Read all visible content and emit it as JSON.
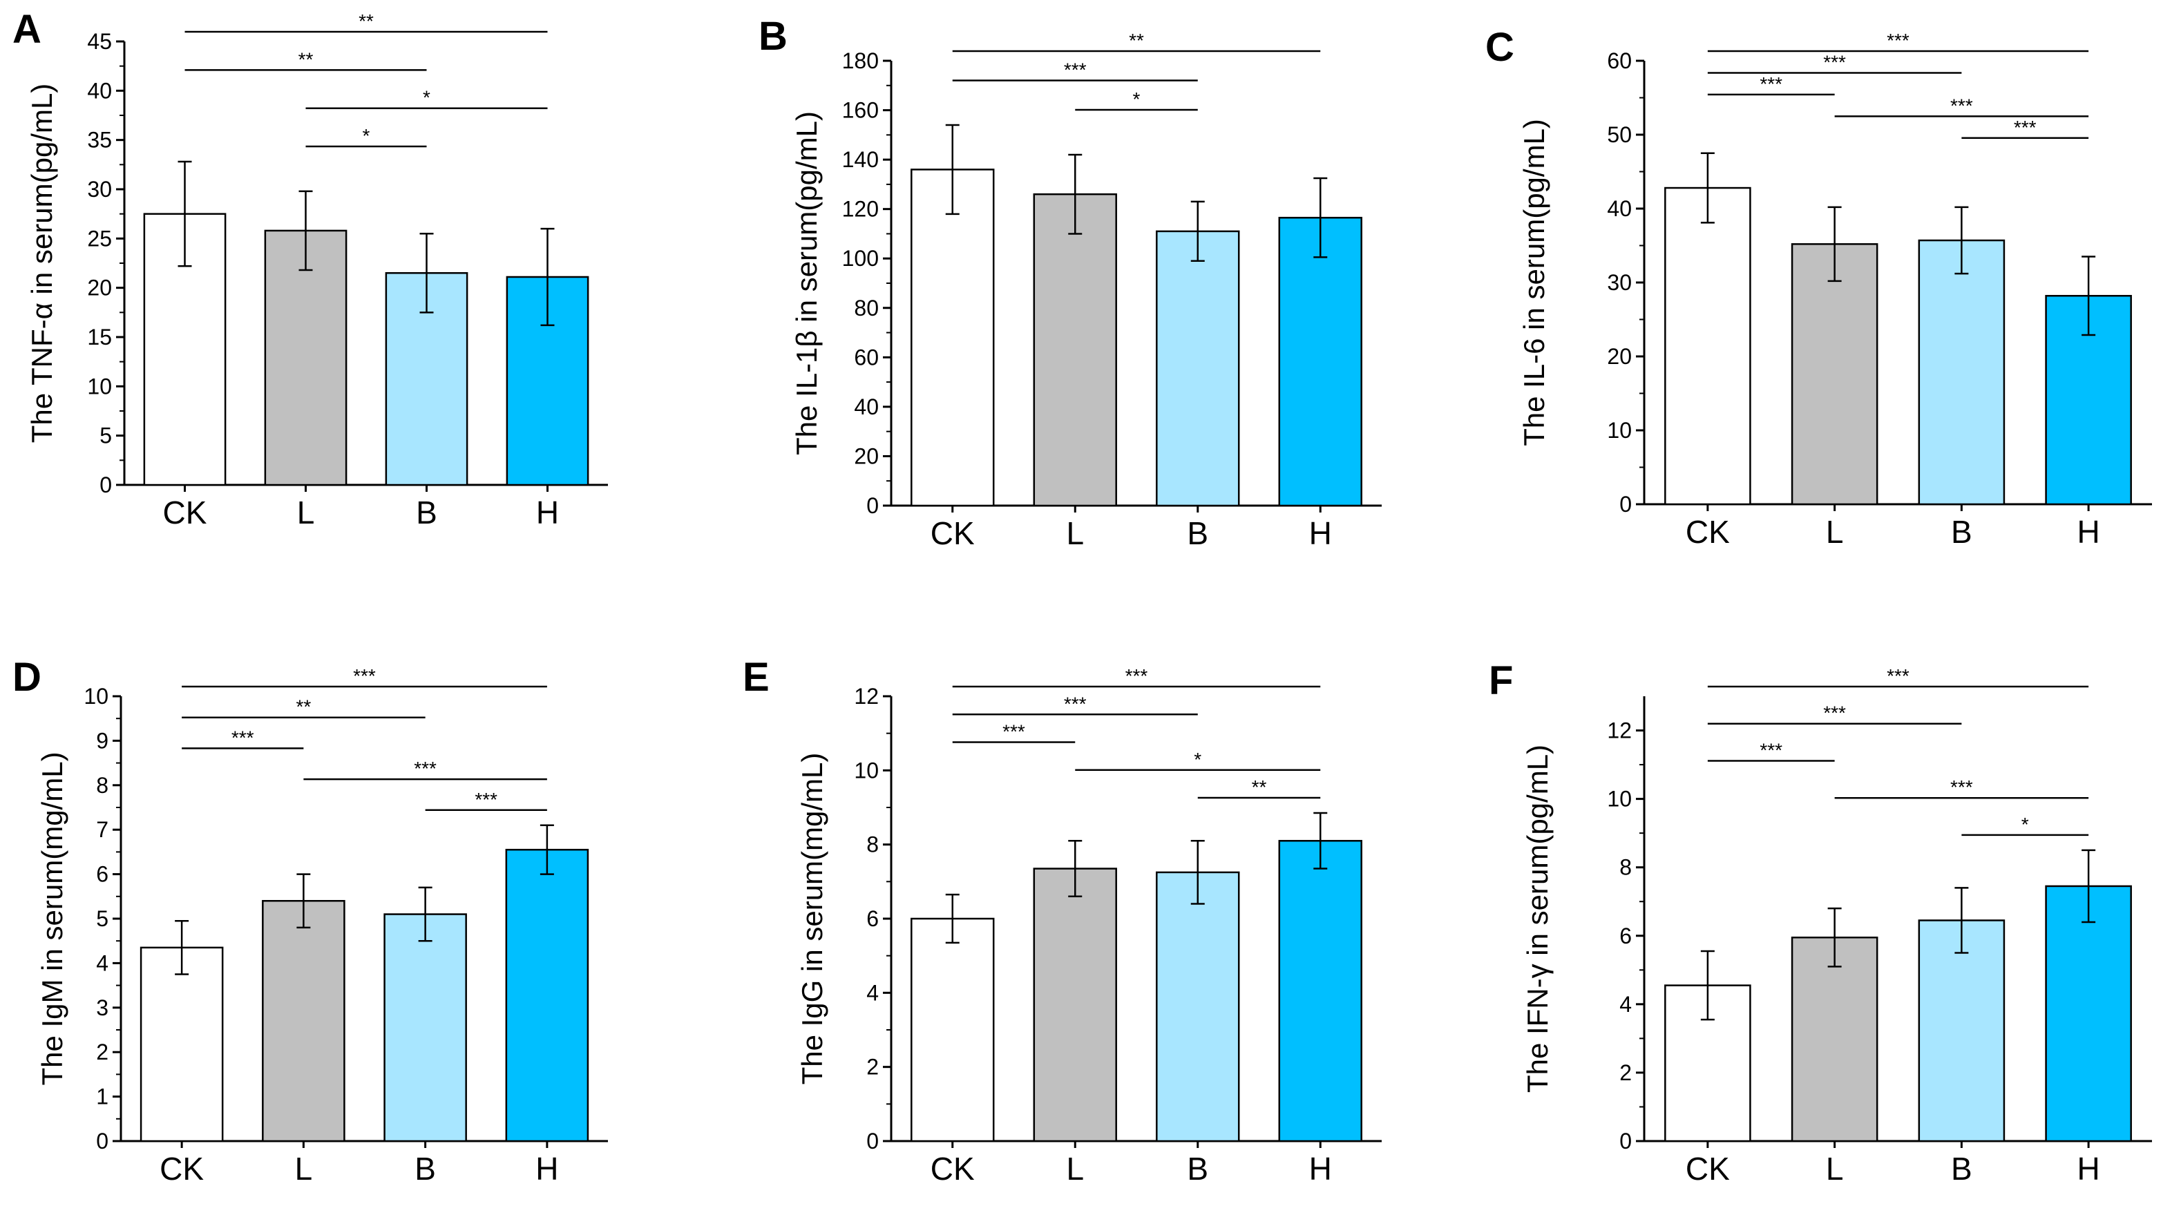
{
  "colors": {
    "CK": "#ffffff",
    "L": "#c0c0c0",
    "B": "#a8e6ff",
    "H": "#00bfff",
    "outline": "#000000"
  },
  "chart_data": [
    {
      "id": "A",
      "type": "bar",
      "letter": "A",
      "ylabel": "The TNF-α in serum(pg/mL)",
      "ylim": [
        0,
        45
      ],
      "yticks": [
        0,
        5,
        10,
        15,
        20,
        25,
        30,
        35,
        40,
        45
      ],
      "categories": [
        "CK",
        "L",
        "B",
        "H"
      ],
      "values": [
        27.5,
        25.8,
        21.5,
        21.1
      ],
      "errors": [
        5.3,
        4.0,
        4.0,
        4.9
      ],
      "sig": [
        {
          "from": 0,
          "to": 3,
          "label": "**"
        },
        {
          "from": 0,
          "to": 2,
          "label": "**"
        },
        {
          "from": 1,
          "to": 3,
          "label": "*"
        },
        {
          "from": 1,
          "to": 2,
          "label": "*"
        }
      ]
    },
    {
      "id": "B",
      "type": "bar",
      "letter": "B",
      "ylabel": "The IL-1β in serum(pg/mL)",
      "ylim": [
        0,
        180
      ],
      "yticks": [
        0,
        20,
        40,
        60,
        80,
        100,
        120,
        140,
        160,
        180
      ],
      "categories": [
        "CK",
        "L",
        "B",
        "H"
      ],
      "values": [
        136,
        126,
        111,
        116.5
      ],
      "errors": [
        18,
        16,
        12,
        16
      ],
      "sig": [
        {
          "from": 0,
          "to": 3,
          "label": "**"
        },
        {
          "from": 0,
          "to": 2,
          "label": "***"
        },
        {
          "from": 1,
          "to": 2,
          "label": "*"
        }
      ]
    },
    {
      "id": "C",
      "type": "bar",
      "letter": "C",
      "ylabel": "The IL-6 in serum(pg/mL)",
      "ylim": [
        0,
        60
      ],
      "yticks": [
        0,
        10,
        20,
        30,
        40,
        50,
        60
      ],
      "categories": [
        "CK",
        "L",
        "B",
        "H"
      ],
      "values": [
        42.8,
        35.2,
        35.7,
        28.2
      ],
      "errors": [
        4.7,
        5.0,
        4.5,
        5.3
      ],
      "sig": [
        {
          "from": 0,
          "to": 3,
          "label": "***"
        },
        {
          "from": 0,
          "to": 2,
          "label": "***"
        },
        {
          "from": 0,
          "to": 1,
          "label": "***"
        },
        {
          "from": 1,
          "to": 3,
          "label": "***"
        },
        {
          "from": 2,
          "to": 3,
          "label": "***"
        }
      ]
    },
    {
      "id": "D",
      "type": "bar",
      "letter": "D",
      "ylabel": "The IgM in serum(mg/mL)",
      "ylim": [
        0,
        10
      ],
      "yticks": [
        0,
        1,
        2,
        3,
        4,
        5,
        6,
        7,
        8,
        9,
        10
      ],
      "categories": [
        "CK",
        "L",
        "B",
        "H"
      ],
      "values": [
        4.35,
        5.4,
        5.1,
        6.55
      ],
      "errors": [
        0.6,
        0.6,
        0.6,
        0.55
      ],
      "sig": [
        {
          "from": 0,
          "to": 3,
          "label": "***"
        },
        {
          "from": 0,
          "to": 2,
          "label": "**"
        },
        {
          "from": 0,
          "to": 1,
          "label": "***"
        },
        {
          "from": 1,
          "to": 3,
          "label": "***"
        },
        {
          "from": 2,
          "to": 3,
          "label": "***"
        }
      ]
    },
    {
      "id": "E",
      "type": "bar",
      "letter": "E",
      "ylabel": "The IgG in serum(mg/mL)",
      "ylim": [
        0,
        12
      ],
      "yticks": [
        0,
        2,
        4,
        6,
        8,
        10,
        12
      ],
      "categories": [
        "CK",
        "L",
        "B",
        "H"
      ],
      "values": [
        6.0,
        7.35,
        7.25,
        8.1
      ],
      "errors": [
        0.65,
        0.75,
        0.85,
        0.75
      ],
      "sig": [
        {
          "from": 0,
          "to": 3,
          "label": "***"
        },
        {
          "from": 0,
          "to": 2,
          "label": "***"
        },
        {
          "from": 0,
          "to": 1,
          "label": "***"
        },
        {
          "from": 1,
          "to": 3,
          "label": "*"
        },
        {
          "from": 2,
          "to": 3,
          "label": "**"
        }
      ]
    },
    {
      "id": "F",
      "type": "bar",
      "letter": "F",
      "ylabel": "The IFN-γ in serum(pg/mL)",
      "ylim": [
        0,
        13
      ],
      "yticks": [
        0,
        2,
        4,
        6,
        8,
        10,
        12
      ],
      "categories": [
        "CK",
        "L",
        "B",
        "H"
      ],
      "values": [
        4.55,
        5.95,
        6.45,
        7.45
      ],
      "errors": [
        1.0,
        0.85,
        0.95,
        1.05
      ],
      "sig": [
        {
          "from": 0,
          "to": 3,
          "label": "***"
        },
        {
          "from": 0,
          "to": 2,
          "label": "***"
        },
        {
          "from": 0,
          "to": 1,
          "label": "***"
        },
        {
          "from": 1,
          "to": 3,
          "label": "***"
        },
        {
          "from": 2,
          "to": 3,
          "label": "*"
        }
      ]
    }
  ]
}
